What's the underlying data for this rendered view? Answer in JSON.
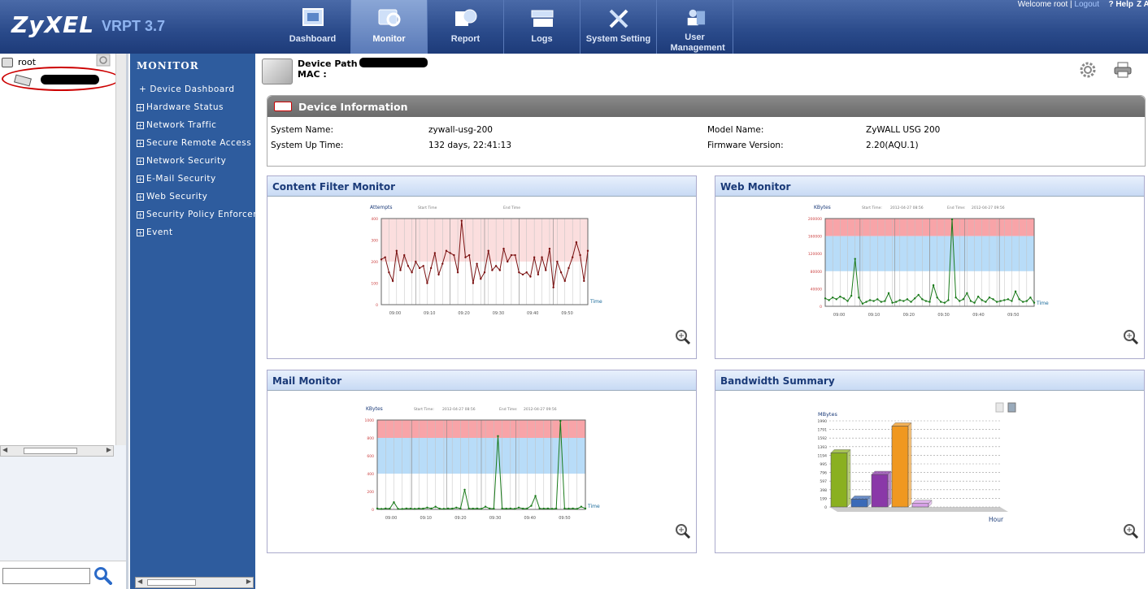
{
  "header": {
    "logo": "ZyXEL",
    "version": "VRPT 3.7",
    "welcome": "Welcome root",
    "separator": "|",
    "logout": "Logout",
    "help": "Help",
    "help_extra": "Z Al"
  },
  "nav": [
    {
      "label": "Dashboard",
      "icon": "dashboard-icon"
    },
    {
      "label": "Monitor",
      "icon": "monitor-icon",
      "active": true
    },
    {
      "label": "Report",
      "icon": "report-icon"
    },
    {
      "label": "Logs",
      "icon": "logs-icon"
    },
    {
      "label": "System Setting",
      "icon": "tools-icon"
    },
    {
      "label": "User Management",
      "icon": "users-icon"
    }
  ],
  "tree": {
    "root": "root"
  },
  "menu": {
    "title": "MONITOR",
    "items": [
      {
        "label": "Device Dashboard",
        "prefix": "+"
      },
      {
        "label": "Hardware Status"
      },
      {
        "label": "Network Traffic"
      },
      {
        "label": "Secure Remote Access"
      },
      {
        "label": "Network Security"
      },
      {
        "label": "E-Mail Security"
      },
      {
        "label": "Web Security"
      },
      {
        "label": "Security Policy Enforcem"
      },
      {
        "label": "Event"
      }
    ]
  },
  "device": {
    "path_label": "Device Path :",
    "mac_label": "MAC :"
  },
  "device_info": {
    "title": "Device Information",
    "system_name_label": "System Name:",
    "system_name": "zywall-usg-200",
    "uptime_label": "System Up Time:",
    "uptime": "132 days, 22:41:13",
    "model_label": "Model Name:",
    "model": "ZyWALL USG 200",
    "firmware_label": "Firmware Version:",
    "firmware": "2.20(AQU.1)"
  },
  "panels": {
    "content_filter": "Content Filter Monitor",
    "web": "Web Monitor",
    "mail": "Mail Monitor",
    "bandwidth": "Bandwidth Summary"
  },
  "chart_data": [
    {
      "id": "content_filter",
      "type": "line",
      "ylabel": "Attempts",
      "start_label": "Start Time",
      "end_label": "End Time",
      "xlabel": "Time",
      "yticks": [
        0,
        100,
        200,
        300,
        400
      ],
      "xticks": [
        "09:00",
        "09:10",
        "09:20",
        "09:30",
        "09:40",
        "09:50"
      ],
      "ylim": [
        0,
        400
      ],
      "bands": [
        {
          "from": 200,
          "to": 400,
          "color": "#fbdede"
        }
      ],
      "line_color": "#7a1010",
      "values": [
        210,
        220,
        150,
        110,
        250,
        160,
        230,
        180,
        150,
        200,
        170,
        180,
        100,
        170,
        240,
        140,
        190,
        250,
        240,
        230,
        150,
        390,
        220,
        230,
        100,
        190,
        120,
        150,
        250,
        160,
        180,
        160,
        260,
        200,
        230,
        230,
        150,
        140,
        150,
        130,
        220,
        140,
        220,
        160,
        260,
        80,
        200,
        150,
        110,
        170,
        220,
        290,
        230,
        110,
        250
      ]
    },
    {
      "id": "web",
      "type": "line",
      "ylabel": "KBytes",
      "start_label": "Start Time:",
      "start_value": "2012-04-27 08:56",
      "end_label": "End Time:",
      "end_value": "2012-04-27 09:56",
      "xlabel": "Time",
      "yticks": [
        0,
        40000,
        80000,
        120000,
        160000,
        200000
      ],
      "xticks": [
        "09:00",
        "09:10",
        "09:20",
        "09:30",
        "09:40",
        "09:50"
      ],
      "ylim": [
        0,
        200000
      ],
      "bands": [
        {
          "from": 160000,
          "to": 200000,
          "color": "#f8a4a8"
        },
        {
          "from": 80000,
          "to": 160000,
          "color": "#b8dcf8"
        }
      ],
      "line_color": "#1a7a1a",
      "values": [
        18000,
        14000,
        20000,
        16000,
        22000,
        18000,
        12000,
        24000,
        108000,
        20000,
        6000,
        10000,
        14000,
        12000,
        16000,
        10000,
        12000,
        30000,
        8000,
        10000,
        14000,
        12000,
        16000,
        10000,
        18000,
        26000,
        16000,
        12000,
        10000,
        48000,
        20000,
        10000,
        8000,
        14000,
        198000,
        20000,
        12000,
        16000,
        30000,
        12000,
        8000,
        22000,
        14000,
        10000,
        20000,
        16000,
        10000,
        12000,
        14000,
        16000,
        12000,
        34000,
        16000,
        10000,
        12000,
        20000,
        8000
      ]
    },
    {
      "id": "mail",
      "type": "line",
      "ylabel": "KBytes",
      "start_label": "Start Time:",
      "start_value": "2012-04-27 08:56",
      "end_label": "End Time:",
      "end_value": "2012-04-27 09:56",
      "xlabel": "Time",
      "yticks": [
        0,
        200,
        400,
        600,
        800,
        1000
      ],
      "xticks": [
        "09:00",
        "09:10",
        "09:20",
        "09:30",
        "09:40",
        "09:50"
      ],
      "ylim": [
        0,
        1000
      ],
      "bands": [
        {
          "from": 800,
          "to": 1000,
          "color": "#f8a4a8"
        },
        {
          "from": 400,
          "to": 800,
          "color": "#b8dcf8"
        }
      ],
      "line_color": "#1a7a1a",
      "values": [
        10,
        5,
        10,
        8,
        80,
        6,
        5,
        10,
        8,
        6,
        10,
        8,
        20,
        10,
        30,
        8,
        6,
        10,
        8,
        20,
        10,
        220,
        10,
        8,
        10,
        6,
        30,
        10,
        8,
        820,
        10,
        8,
        10,
        6,
        20,
        8,
        10,
        40,
        150,
        10,
        8,
        10,
        6,
        10,
        990,
        10,
        8,
        10,
        6,
        30,
        10
      ]
    },
    {
      "id": "bandwidth",
      "type": "bar",
      "ylabel": "MBytes",
      "xlabel": "Hour",
      "yticks": [
        0,
        199,
        398,
        597,
        796,
        995,
        1194,
        1393,
        1592,
        1791,
        1990
      ],
      "ylim": [
        0,
        1990
      ],
      "values": [
        1250,
        180,
        750,
        1870,
        80
      ],
      "colors": [
        "#8ab020",
        "#3a6ab8",
        "#8a38a8",
        "#f09820",
        "#d8a0e8"
      ]
    }
  ]
}
